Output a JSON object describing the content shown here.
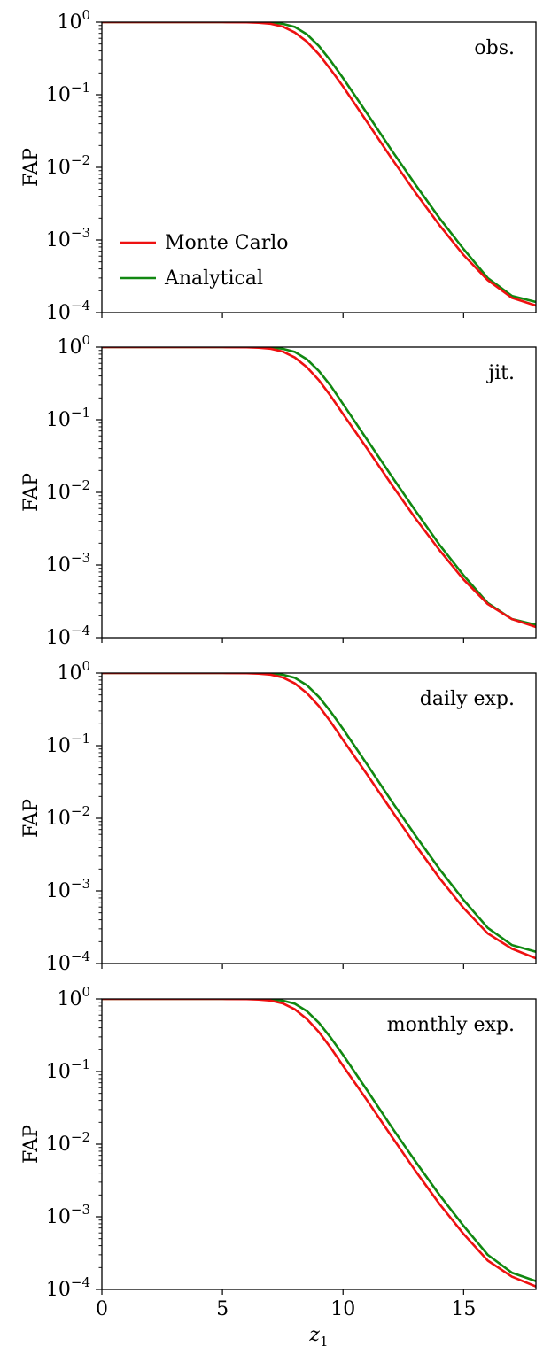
{
  "figure": {
    "xlabel": "z",
    "xlabel_sub": "1",
    "ylabel": "FAP"
  },
  "legend": {
    "entries": [
      "Monte Carlo",
      "Analytical"
    ]
  },
  "colors": {
    "monte_carlo": "#ee1111",
    "analytical": "#118811",
    "axes": "#000000"
  },
  "chart_data": [
    {
      "type": "line",
      "label": "obs.",
      "x_range": [
        0,
        18
      ],
      "y_range": [
        0.0001,
        1
      ],
      "y_scale": "log",
      "xticks": [
        0,
        5,
        10,
        15
      ],
      "yticks": [
        {
          "base": "10",
          "exp": "0"
        },
        {
          "base": "10",
          "exp": "−1"
        },
        {
          "base": "10",
          "exp": "−2"
        },
        {
          "base": "10",
          "exp": "−3"
        },
        {
          "base": "10",
          "exp": "−4"
        }
      ],
      "grid": false,
      "legend_position": "lower-left",
      "series": [
        {
          "name": "Monte Carlo",
          "x": [
            0,
            4,
            5,
            6,
            6.5,
            7,
            7.5,
            8,
            8.5,
            9,
            9.5,
            10,
            11,
            12,
            13,
            14,
            15,
            16,
            17,
            18
          ],
          "y": [
            1,
            1,
            1,
            0.995,
            0.98,
            0.95,
            0.87,
            0.72,
            0.54,
            0.36,
            0.22,
            0.13,
            0.042,
            0.0135,
            0.0045,
            0.0016,
            0.00062,
            0.00028,
            0.00016,
            0.000125
          ]
        },
        {
          "name": "Analytical",
          "x": [
            0,
            4,
            5,
            6,
            6.5,
            7,
            7.5,
            8,
            8.5,
            9,
            9.5,
            10,
            11,
            12,
            13,
            14,
            15,
            16,
            17,
            18
          ],
          "y": [
            1,
            1,
            1,
            1,
            0.995,
            0.985,
            0.95,
            0.86,
            0.68,
            0.47,
            0.29,
            0.17,
            0.055,
            0.0175,
            0.0058,
            0.002,
            0.00075,
            0.0003,
            0.00017,
            0.00014
          ]
        }
      ]
    },
    {
      "type": "line",
      "label": "jit.",
      "x_range": [
        0,
        18
      ],
      "y_range": [
        0.0001,
        1
      ],
      "y_scale": "log",
      "xticks": [
        0,
        5,
        10,
        15
      ],
      "yticks": [
        {
          "base": "10",
          "exp": "0"
        },
        {
          "base": "10",
          "exp": "−1"
        },
        {
          "base": "10",
          "exp": "−2"
        },
        {
          "base": "10",
          "exp": "−3"
        },
        {
          "base": "10",
          "exp": "−4"
        }
      ],
      "grid": false,
      "series": [
        {
          "name": "Monte Carlo",
          "x": [
            0,
            4,
            5,
            6,
            6.5,
            7,
            7.5,
            8,
            8.5,
            9,
            9.5,
            10,
            11,
            12,
            13,
            14,
            15,
            16,
            17,
            18
          ],
          "y": [
            1,
            1,
            1,
            0.995,
            0.98,
            0.95,
            0.87,
            0.72,
            0.53,
            0.35,
            0.21,
            0.12,
            0.04,
            0.013,
            0.0044,
            0.0016,
            0.00063,
            0.00029,
            0.00018,
            0.00014
          ]
        },
        {
          "name": "Analytical",
          "x": [
            0,
            4,
            5,
            6,
            6.5,
            7,
            7.5,
            8,
            8.5,
            9,
            9.5,
            10,
            11,
            12,
            13,
            14,
            15,
            16,
            17,
            18
          ],
          "y": [
            1,
            1,
            1,
            1,
            0.995,
            0.985,
            0.95,
            0.86,
            0.68,
            0.47,
            0.29,
            0.165,
            0.053,
            0.017,
            0.0056,
            0.0019,
            0.00072,
            0.0003,
            0.00018,
            0.00015
          ]
        }
      ]
    },
    {
      "type": "line",
      "label": "daily exp.",
      "x_range": [
        0,
        18
      ],
      "y_range": [
        0.0001,
        1
      ],
      "y_scale": "log",
      "xticks": [
        0,
        5,
        10,
        15
      ],
      "yticks": [
        {
          "base": "10",
          "exp": "0"
        },
        {
          "base": "10",
          "exp": "−1"
        },
        {
          "base": "10",
          "exp": "−2"
        },
        {
          "base": "10",
          "exp": "−3"
        },
        {
          "base": "10",
          "exp": "−4"
        }
      ],
      "grid": false,
      "series": [
        {
          "name": "Monte Carlo",
          "x": [
            0,
            4,
            5,
            6,
            6.5,
            7,
            7.5,
            8,
            8.5,
            9,
            9.5,
            10,
            11,
            12,
            13,
            14,
            15,
            16,
            17,
            18
          ],
          "y": [
            1,
            1,
            1,
            0.995,
            0.98,
            0.95,
            0.87,
            0.72,
            0.53,
            0.35,
            0.21,
            0.12,
            0.04,
            0.013,
            0.0043,
            0.0015,
            0.00058,
            0.00026,
            0.00016,
            0.000118
          ]
        },
        {
          "name": "Analytical",
          "x": [
            0,
            4,
            5,
            6,
            6.5,
            7,
            7.5,
            8,
            8.5,
            9,
            9.5,
            10,
            11,
            12,
            13,
            14,
            15,
            16,
            17,
            18
          ],
          "y": [
            1,
            1,
            1,
            1,
            0.995,
            0.985,
            0.95,
            0.86,
            0.68,
            0.47,
            0.29,
            0.17,
            0.055,
            0.0175,
            0.0058,
            0.002,
            0.00075,
            0.00031,
            0.00018,
            0.000145
          ]
        }
      ]
    },
    {
      "type": "line",
      "label": "monthly exp.",
      "x_range": [
        0,
        18
      ],
      "y_range": [
        0.0001,
        1
      ],
      "y_scale": "log",
      "xticks": [
        0,
        5,
        10,
        15
      ],
      "yticks": [
        {
          "base": "10",
          "exp": "0"
        },
        {
          "base": "10",
          "exp": "−1"
        },
        {
          "base": "10",
          "exp": "−2"
        },
        {
          "base": "10",
          "exp": "−3"
        },
        {
          "base": "10",
          "exp": "−4"
        }
      ],
      "grid": false,
      "series": [
        {
          "name": "Monte Carlo",
          "x": [
            0,
            4,
            5,
            6,
            6.5,
            7,
            7.5,
            8,
            8.5,
            9,
            9.5,
            10,
            11,
            12,
            13,
            14,
            15,
            16,
            17,
            18
          ],
          "y": [
            1,
            1,
            1,
            0.995,
            0.98,
            0.95,
            0.87,
            0.72,
            0.53,
            0.35,
            0.21,
            0.12,
            0.04,
            0.013,
            0.0043,
            0.0015,
            0.00058,
            0.00025,
            0.00015,
            0.00011
          ]
        },
        {
          "name": "Analytical",
          "x": [
            0,
            4,
            5,
            6,
            6.5,
            7,
            7.5,
            8,
            8.5,
            9,
            9.5,
            10,
            11,
            12,
            13,
            14,
            15,
            16,
            17,
            18
          ],
          "y": [
            1,
            1,
            1,
            1,
            0.995,
            0.985,
            0.95,
            0.86,
            0.68,
            0.47,
            0.29,
            0.17,
            0.055,
            0.0175,
            0.0058,
            0.002,
            0.00075,
            0.0003,
            0.00017,
            0.00013
          ]
        }
      ]
    }
  ]
}
